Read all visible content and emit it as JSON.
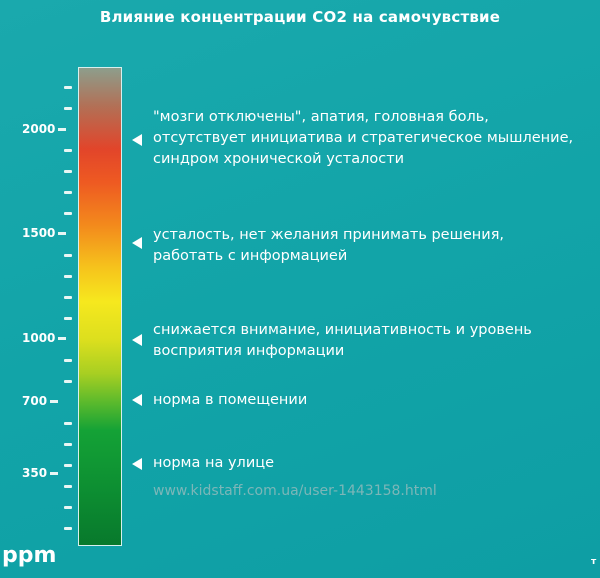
{
  "title": "Влияние концентрации CO2 на самочувствие",
  "unit": "ppm",
  "scale_labels": [
    "2000",
    "1500",
    "1000",
    "700",
    "350"
  ],
  "levels": [
    {
      "ppm": 2000,
      "text": "\"мозги отключены\", апатия, головная боль,\nотсутствует инициатива и стратегическое мышление,\nсиндром хронической усталости"
    },
    {
      "ppm": 1500,
      "text": "усталость, нет желания принимать решения,\nработать с информацией"
    },
    {
      "ppm": 1000,
      "text": "снижается внимание, инициативность и уровень\nвосприятия информации"
    },
    {
      "ppm": 700,
      "text": "норма в помещении"
    },
    {
      "ppm": 350,
      "text": "норма на улице"
    }
  ],
  "watermark": "www.kidstaff.com.ua/user-1443158.html",
  "corner_mark": "т"
}
